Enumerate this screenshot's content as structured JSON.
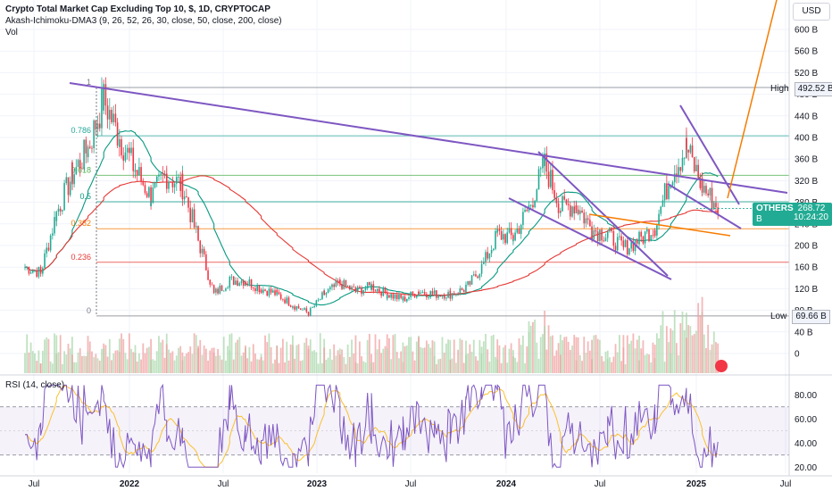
{
  "legend": {
    "title": "Crypto Total Market Cap Excluding Top 10, $, 1D, CRYPTOCAP",
    "indicator": "Akash-Ichimoku-DMA3 (9, 26, 52, 26, 30, close, 50, close, 200, close)",
    "volume": "Vol"
  },
  "rsi_label": "RSI (14, close)",
  "currency": "USD",
  "high": {
    "label": "High",
    "value": "492.52 B"
  },
  "low": {
    "label": "Low",
    "value": "69.66 B"
  },
  "last": {
    "symbol": "OTHERS",
    "value": "268.72 B",
    "countdown": "10:24:20"
  },
  "fib_labels": [
    "1",
    "0.786",
    "0.618",
    "0.5",
    "0.382",
    "0.236",
    "0"
  ],
  "colors": {
    "up": "#22ab94",
    "down": "#f23645",
    "trend": "#7e57c2",
    "orange": "#f57c00",
    "ma50": "#089981",
    "ma200": "#e53935",
    "rsi": "#7e57c2",
    "rsi_ma": "#fbc02d"
  },
  "chart_data": [
    {
      "type": "candlestick",
      "title": "Crypto Total Market Cap Excluding Top 10, $, 1D, CRYPTOCAP",
      "y_unit": "USD",
      "x_ticks": [
        "Jul",
        "2022",
        "Jul",
        "2023",
        "Jul",
        "2024",
        "Jul",
        "2025",
        "Jul"
      ],
      "y_ticks": [
        "600 B",
        "560 B",
        "520 B",
        "480 B",
        "440 B",
        "400 B",
        "360 B",
        "320 B",
        "280 B",
        "240 B",
        "200 B",
        "160 B",
        "120 B",
        "80 B",
        "40 B",
        "0"
      ],
      "ylim": [
        0,
        620
      ],
      "series_close_approx": [
        [
          "2021-06",
          160
        ],
        [
          "2021-07",
          150
        ],
        [
          "2021-08",
          260
        ],
        [
          "2021-09",
          330
        ],
        [
          "2021-10",
          380
        ],
        [
          "2021-11",
          470
        ],
        [
          "2021-12",
          400
        ],
        [
          "2022-01",
          340
        ],
        [
          "2022-02",
          290
        ],
        [
          "2022-03",
          330
        ],
        [
          "2022-04",
          310
        ],
        [
          "2022-05",
          210
        ],
        [
          "2022-06",
          110
        ],
        [
          "2022-07",
          135
        ],
        [
          "2022-08",
          135
        ],
        [
          "2022-09",
          120
        ],
        [
          "2022-10",
          110
        ],
        [
          "2022-11",
          90
        ],
        [
          "2022-12",
          75
        ],
        [
          "2023-01",
          110
        ],
        [
          "2023-02",
          130
        ],
        [
          "2023-03",
          115
        ],
        [
          "2023-04",
          125
        ],
        [
          "2023-05",
          110
        ],
        [
          "2023-06",
          100
        ],
        [
          "2023-07",
          115
        ],
        [
          "2023-08",
          110
        ],
        [
          "2023-09",
          110
        ],
        [
          "2023-10",
          120
        ],
        [
          "2023-11",
          160
        ],
        [
          "2023-12",
          220
        ],
        [
          "2024-01",
          215
        ],
        [
          "2024-02",
          270
        ],
        [
          "2024-03",
          350
        ],
        [
          "2024-04",
          270
        ],
        [
          "2024-05",
          275
        ],
        [
          "2024-06",
          230
        ],
        [
          "2024-07",
          220
        ],
        [
          "2024-08",
          195
        ],
        [
          "2024-09",
          210
        ],
        [
          "2024-10",
          235
        ],
        [
          "2024-11",
          330
        ],
        [
          "2024-12",
          380
        ],
        [
          "2025-01",
          310
        ],
        [
          "2025-02",
          269
        ]
      ],
      "high": 492.52,
      "low": 69.66,
      "last": 268.72,
      "fib_levels": [
        {
          "label": "1",
          "value": 492.52
        },
        {
          "label": "0.786",
          "value": 403
        },
        {
          "label": "0.618",
          "value": 330
        },
        {
          "label": "0.5",
          "value": 281
        },
        {
          "label": "0.382",
          "value": 231
        },
        {
          "label": "0.236",
          "value": 169
        },
        {
          "label": "0",
          "value": 69.66
        }
      ]
    },
    {
      "type": "line",
      "title": "RSI (14, close)",
      "y_ticks": [
        "80.00",
        "60.00",
        "40.00",
        "20.00"
      ],
      "ylim": [
        15,
        95
      ],
      "bands": [
        30,
        70
      ],
      "last": 41
    }
  ]
}
